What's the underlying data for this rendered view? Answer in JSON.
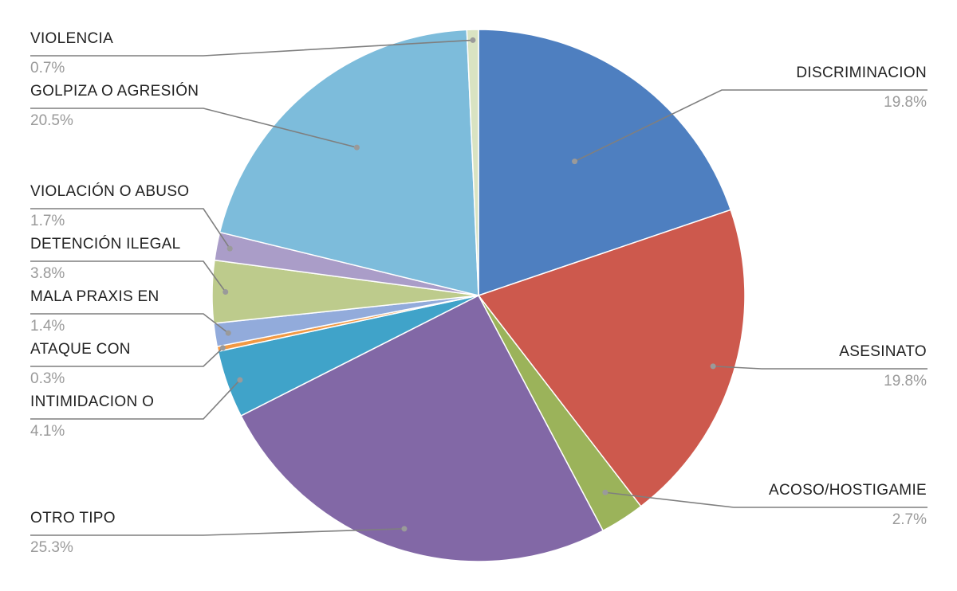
{
  "chart_data": {
    "type": "pie",
    "start_angle_deg": 0,
    "direction": "clockwise",
    "slices": [
      {
        "label": "DISCRIMINACION",
        "value": 19.8,
        "value_label": "19.8%",
        "color": "#4e7fc0"
      },
      {
        "label": "ASESINATO",
        "value": 19.8,
        "value_label": "19.8%",
        "color": "#cd594d"
      },
      {
        "label": "ACOSO/HOSTIGAMIE",
        "value": 2.7,
        "value_label": "2.7%",
        "color": "#9bb35a"
      },
      {
        "label": "OTRO TIPO",
        "value": 25.3,
        "value_label": "25.3%",
        "color": "#8268a6"
      },
      {
        "label": "INTIMIDACION O",
        "value": 4.1,
        "value_label": "4.1%",
        "color": "#40a3c9"
      },
      {
        "label": "ATAQUE CON",
        "value": 0.3,
        "value_label": "0.3%",
        "color": "#f29944"
      },
      {
        "label": "MALA PRAXIS EN",
        "value": 1.4,
        "value_label": "1.4%",
        "color": "#92abdb"
      },
      {
        "label": "DETENCIÓN ILEGAL",
        "value": 3.8,
        "value_label": "3.8%",
        "color": "#bdcb8c"
      },
      {
        "label": "VIOLACIÓN O ABUSO",
        "value": 1.7,
        "value_label": "1.7%",
        "color": "#aa9dc8"
      },
      {
        "label": "GOLPIZA O AGRESIÓN",
        "value": 20.5,
        "value_label": "20.5%",
        "color": "#7dbcdb"
      },
      {
        "label": "VIOLENCIA",
        "value": 0.7,
        "value_label": "0.7%",
        "color": "#d9e3c2"
      }
    ]
  }
}
